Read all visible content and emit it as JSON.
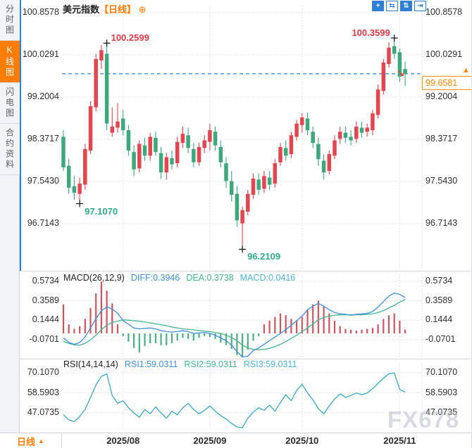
{
  "sidebar": {
    "items": [
      {
        "label": "分时图",
        "selected": false
      },
      {
        "label": "K线图",
        "selected": true
      },
      {
        "label": "闪电图",
        "selected": false
      },
      {
        "label": "合约资料",
        "selected": false
      }
    ]
  },
  "header": {
    "title": "美元指数",
    "period_tag": "【日线】",
    "add_icon": "⊕"
  },
  "toolbar": {
    "icons": [
      {
        "name": "pan-icon",
        "glyph": "+",
        "filled": true
      },
      {
        "name": "zoom-horizontal-icon",
        "glyph": "⇆",
        "filled": false
      },
      {
        "name": "zoom-vertical-icon",
        "glyph": "⇅",
        "filled": true
      },
      {
        "name": "jump-latest-icon",
        "glyph": "⇥",
        "filled": false
      }
    ]
  },
  "macd_header": {
    "name": "MACD(26,12,9)",
    "diff": "DIFF:0.3946",
    "dea": "DEA:0.3738",
    "macd": "MACD:0.0416"
  },
  "rsi_header": {
    "name": "RSI(14,14,14)",
    "rsi1": "RSI1:59.0311",
    "rsi2": "RSI2:59.0311",
    "rsi3": "RSI3:59.0311"
  },
  "price_box": {
    "value": "99.6581",
    "arrow": "▲"
  },
  "pullback_arrow": "↘",
  "footer": {
    "period_label": "日线",
    "arrow": "▲"
  },
  "watermark": "FX678",
  "chart_data": {
    "type": "candlestick",
    "title": "美元指数 日线",
    "current_price": 99.6581,
    "price_axis": {
      "ticks": [
        "100.8578",
        "100.0291",
        "99.2004",
        "98.3717",
        "97.5430",
        "96.7143"
      ]
    },
    "macd_axis": {
      "ticks": [
        "0.5734",
        "0.3589",
        "0.1444",
        "-0.0701"
      ]
    },
    "rsi_axis": {
      "ticks": [
        "70.1070",
        "58.5903",
        "47.0735"
      ]
    },
    "month_ticks": [
      {
        "index": 11,
        "label": "2025/08"
      },
      {
        "index": 27,
        "label": "2025/09"
      },
      {
        "index": 44,
        "label": "2025/10"
      },
      {
        "index": 62,
        "label": "2025/11"
      }
    ],
    "candles": [
      [
        98.42,
        98.55,
        97.75,
        97.82
      ],
      [
        97.85,
        97.98,
        97.3,
        97.42
      ],
      [
        97.45,
        97.65,
        97.18,
        97.32
      ],
      [
        97.3,
        97.62,
        97.107,
        97.5
      ],
      [
        97.48,
        98.28,
        97.38,
        98.18
      ],
      [
        98.15,
        99.12,
        98.08,
        99.02
      ],
      [
        99.0,
        100.05,
        98.92,
        99.95
      ],
      [
        99.92,
        100.22,
        99.75,
        100.12
      ],
      [
        100.05,
        100.2599,
        98.55,
        98.68
      ],
      [
        98.5,
        99.0,
        98.42,
        98.62
      ],
      [
        98.6,
        99.08,
        98.5,
        98.72
      ],
      [
        98.78,
        98.95,
        98.45,
        98.55
      ],
      [
        98.55,
        98.65,
        98.05,
        98.15
      ],
      [
        98.12,
        98.25,
        97.65,
        97.78
      ],
      [
        97.8,
        98.35,
        97.72,
        98.28
      ],
      [
        98.25,
        98.4,
        97.95,
        98.05
      ],
      [
        98.05,
        98.5,
        97.95,
        98.42
      ],
      [
        98.4,
        98.52,
        98.05,
        98.12
      ],
      [
        98.1,
        98.22,
        97.6,
        97.72
      ],
      [
        97.72,
        98.1,
        97.58,
        98.02
      ],
      [
        98.0,
        98.15,
        97.78,
        97.88
      ],
      [
        97.9,
        98.42,
        97.82,
        98.32
      ],
      [
        98.3,
        98.62,
        98.2,
        98.48
      ],
      [
        98.45,
        98.6,
        98.1,
        98.2
      ],
      [
        98.18,
        98.3,
        97.82,
        97.92
      ],
      [
        97.92,
        98.3,
        97.85,
        98.22
      ],
      [
        98.2,
        98.45,
        98.1,
        98.35
      ],
      [
        98.32,
        98.68,
        98.15,
        98.55
      ],
      [
        98.52,
        98.62,
        98.15,
        98.25
      ],
      [
        98.22,
        98.35,
        97.82,
        97.92
      ],
      [
        97.9,
        98.02,
        97.42,
        97.55
      ],
      [
        97.55,
        97.75,
        97.15,
        97.28
      ],
      [
        97.3,
        97.45,
        96.65,
        96.78
      ],
      [
        96.72,
        97.05,
        96.2109,
        96.98
      ],
      [
        96.95,
        97.38,
        96.88,
        97.3
      ],
      [
        97.28,
        97.7,
        97.2,
        97.6
      ],
      [
        97.58,
        97.7,
        97.28,
        97.38
      ],
      [
        97.4,
        97.75,
        97.32,
        97.65
      ],
      [
        97.62,
        97.75,
        97.38,
        97.48
      ],
      [
        97.5,
        97.98,
        97.42,
        97.9
      ],
      [
        97.92,
        98.3,
        97.85,
        98.22
      ],
      [
        98.2,
        98.35,
        97.95,
        98.05
      ],
      [
        98.08,
        98.52,
        98.0,
        98.45
      ],
      [
        98.42,
        98.75,
        98.35,
        98.68
      ],
      [
        98.65,
        98.88,
        98.5,
        98.8
      ],
      [
        98.78,
        98.9,
        98.45,
        98.55
      ],
      [
        98.52,
        98.62,
        98.2,
        98.3
      ],
      [
        98.28,
        98.4,
        97.85,
        97.98
      ],
      [
        97.95,
        98.08,
        97.58,
        97.72
      ],
      [
        97.75,
        98.15,
        97.68,
        98.08
      ],
      [
        98.05,
        98.45,
        97.98,
        98.35
      ],
      [
        98.38,
        98.62,
        98.28,
        98.52
      ],
      [
        98.5,
        98.62,
        98.3,
        98.4
      ],
      [
        98.42,
        98.55,
        98.25,
        98.35
      ],
      [
        98.38,
        98.72,
        98.3,
        98.62
      ],
      [
        98.6,
        98.72,
        98.4,
        98.5
      ],
      [
        98.52,
        98.68,
        98.42,
        98.6
      ],
      [
        98.55,
        98.95,
        98.45,
        98.88
      ],
      [
        98.85,
        99.45,
        98.78,
        99.35
      ],
      [
        99.32,
        99.95,
        99.25,
        99.88
      ],
      [
        99.85,
        100.28,
        99.78,
        100.17
      ],
      [
        100.2,
        100.3599,
        99.95,
        100.05
      ],
      [
        100.08,
        100.15,
        99.5,
        99.6
      ],
      [
        99.75,
        99.9,
        99.42,
        99.6581
      ]
    ],
    "macd": {
      "diff": [
        -0.05,
        -0.1,
        -0.12,
        -0.1,
        -0.04,
        0.06,
        0.16,
        0.25,
        0.29,
        0.27,
        0.22,
        0.14,
        0.1,
        0.06,
        0.05,
        0.055,
        0.06,
        0.05,
        0.03,
        0.02,
        0.015,
        0.02,
        0.03,
        0.02,
        0.0,
        0.005,
        0.01,
        0.0,
        -0.02,
        -0.05,
        -0.08,
        -0.13,
        -0.2,
        -0.26,
        -0.25,
        -0.19,
        -0.16,
        -0.12,
        -0.08,
        -0.04,
        0.0,
        0.04,
        0.09,
        0.14,
        0.19,
        0.26,
        0.3,
        0.33,
        0.3,
        0.26,
        0.23,
        0.215,
        0.21,
        0.2,
        0.21,
        0.215,
        0.22,
        0.24,
        0.29,
        0.35,
        0.41,
        0.445,
        0.43,
        0.3946
      ],
      "dea": [
        -0.09,
        -0.11,
        -0.125,
        -0.13,
        -0.11,
        -0.07,
        -0.02,
        0.04,
        0.09,
        0.12,
        0.135,
        0.15,
        0.145,
        0.14,
        0.135,
        0.125,
        0.115,
        0.105,
        0.095,
        0.085,
        0.07,
        0.06,
        0.05,
        0.045,
        0.04,
        0.03,
        0.025,
        0.02,
        0.01,
        0.0,
        -0.02,
        -0.045,
        -0.08,
        -0.13,
        -0.16,
        -0.175,
        -0.18,
        -0.175,
        -0.165,
        -0.145,
        -0.12,
        -0.09,
        -0.055,
        -0.02,
        0.02,
        0.06,
        0.105,
        0.15,
        0.175,
        0.19,
        0.2,
        0.205,
        0.205,
        0.205,
        0.205,
        0.205,
        0.21,
        0.215,
        0.23,
        0.25,
        0.28,
        0.31,
        0.345,
        0.3738
      ],
      "hist": [
        0.32,
        0.1,
        0.05,
        0.08,
        0.16,
        0.28,
        0.44,
        0.57,
        0.47,
        0.33,
        0.1,
        -0.03,
        -0.09,
        -0.16,
        -0.21,
        -0.14,
        -0.11,
        -0.11,
        -0.13,
        -0.13,
        -0.11,
        -0.08,
        -0.05,
        -0.06,
        -0.08,
        -0.05,
        -0.03,
        -0.04,
        -0.06,
        -0.1,
        -0.13,
        -0.17,
        -0.24,
        -0.26,
        -0.18,
        -0.08,
        -0.03,
        0.1,
        0.14,
        0.18,
        0.22,
        0.2,
        0.16,
        0.14,
        0.18,
        0.26,
        0.32,
        0.36,
        0.3,
        0.22,
        0.14,
        0.08,
        0.05,
        0.04,
        0.03,
        0.04,
        0.05,
        0.06,
        0.1,
        0.16,
        0.2,
        0.22,
        0.14,
        0.0416
      ]
    },
    "rsi": [
      46,
      43,
      42,
      45,
      49,
      56,
      63,
      68,
      69.5,
      57,
      52.5,
      54,
      50,
      47,
      44.5,
      49,
      46.5,
      50.5,
      47,
      44,
      48,
      46,
      50,
      52.5,
      49,
      46.5,
      48.5,
      51,
      48,
      45.5,
      43.5,
      41,
      39,
      38.5,
      44,
      47.5,
      50,
      48.5,
      51.5,
      48,
      53,
      57.5,
      54,
      60,
      63.5,
      58.5,
      54.5,
      49.5,
      46.5,
      51,
      55,
      58,
      56,
      57,
      58.5,
      57.5,
      58.5,
      61,
      64,
      67,
      69.5,
      70,
      60.5,
      59.0311
    ],
    "annotations": [
      {
        "value": "100.2599",
        "index": 8,
        "kind": "high",
        "align": "right-of"
      },
      {
        "value": "100.3599",
        "index": 61,
        "kind": "high",
        "align": "left-of"
      },
      {
        "value": "97.1070",
        "index": 3,
        "kind": "low",
        "align": "right-of"
      },
      {
        "value": "96.2109",
        "index": 33,
        "kind": "low",
        "align": "right-of"
      }
    ],
    "colors": {
      "up": "#e2464e",
      "down": "#3fa77c",
      "hist_pos": "#d05560",
      "hist_neg": "#4fae85",
      "diff": "#3e8ede",
      "dea": "#46b48e",
      "rsi": "#3aa7c9",
      "current_line": "#2f80d4",
      "high_label": "#e23b47",
      "low_label": "#2ea98c",
      "accent_orange": "#ff7d00",
      "grid": "#d8dade"
    }
  }
}
